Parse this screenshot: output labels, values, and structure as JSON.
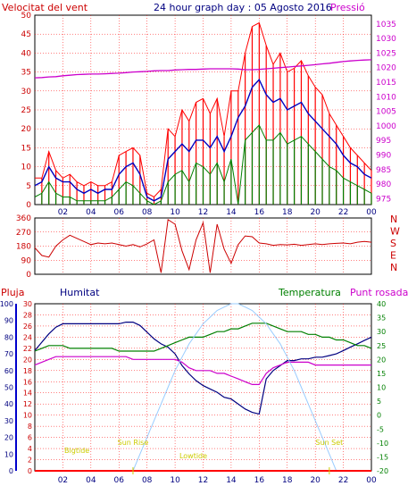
{
  "header": {
    "left_title": "Velocitat del vent",
    "center_title": "24 hour graph day : 05 Agosto 2016",
    "right_title": "Pressió"
  },
  "colors": {
    "background": "#ffffff",
    "grid": "#ff0000",
    "wind_speed": "#ff0000",
    "wind_avg": "#0000c0",
    "wind_low": "#008000",
    "pressure": "#cc00cc",
    "direction": "#cc0000",
    "humidity": "#000080",
    "temperature": "#008000",
    "dewpoint": "#cc00cc",
    "solar": "#99ccff",
    "rain": "#ff0000",
    "event_labels": "#cccc00",
    "axis_text": "#000080"
  },
  "chart_data": [
    {
      "type": "line",
      "title": "24 hour graph day : 05 Agosto 2016",
      "left_axis_label": "Velocitat del vent",
      "right_axis_label": "Pressió",
      "x_ticks": [
        "02",
        "04",
        "06",
        "08",
        "10",
        "12",
        "14",
        "16",
        "18",
        "20",
        "22",
        "00"
      ],
      "y_left_ticks": [
        "0",
        "5",
        "10",
        "15",
        "20",
        "25",
        "30",
        "35",
        "40",
        "45",
        "50"
      ],
      "y_left_range": [
        0,
        50
      ],
      "y_right_ticks": [
        "975",
        "980",
        "985",
        "990",
        "995",
        "1000",
        "1005",
        "1010",
        "1015",
        "1020",
        "1025",
        "1030",
        "1035"
      ],
      "y_right_range": [
        973,
        1038
      ],
      "grid": true,
      "x_hours": [
        0,
        0.5,
        1,
        1.5,
        2,
        2.5,
        3,
        3.5,
        4,
        4.5,
        5,
        5.5,
        6,
        6.5,
        7,
        7.5,
        8,
        8.5,
        9,
        9.5,
        10,
        10.5,
        11,
        11.5,
        12,
        12.5,
        13,
        13.5,
        14,
        14.5,
        15,
        15.5,
        16,
        16.5,
        17,
        17.5,
        18,
        18.5,
        19,
        19.5,
        20,
        20.5,
        21,
        21.5,
        22,
        22.5,
        23,
        23.5,
        24
      ],
      "series": [
        {
          "key": "gust",
          "values": [
            7,
            7,
            14,
            9,
            7,
            8,
            6,
            5,
            6,
            5,
            5,
            6,
            13,
            14,
            15,
            13,
            3,
            2,
            4,
            20,
            18,
            25,
            22,
            27,
            28,
            24,
            28,
            18,
            30,
            30,
            40,
            47,
            48,
            42,
            37,
            40,
            35,
            36,
            38,
            34,
            31,
            29,
            24,
            21,
            18,
            15,
            13,
            11,
            9
          ]
        },
        {
          "key": "average",
          "values": [
            5,
            6,
            10,
            7,
            6,
            6,
            4,
            3,
            4,
            3,
            4,
            4,
            8,
            10,
            11,
            8,
            2,
            1,
            2,
            12,
            14,
            16,
            14,
            17,
            17,
            15,
            18,
            14,
            18,
            23,
            26,
            31,
            33,
            29,
            27,
            28,
            25,
            26,
            27,
            24,
            22,
            20,
            18,
            16,
            13,
            11,
            10,
            8,
            7
          ]
        },
        {
          "key": "low",
          "values": [
            2,
            3,
            6,
            3,
            2,
            2,
            1,
            1,
            1,
            1,
            1,
            2,
            4,
            6,
            5,
            3,
            1,
            0,
            1,
            6,
            8,
            9,
            6,
            11,
            10,
            8,
            11,
            6,
            12,
            0,
            17,
            19,
            21,
            17,
            17,
            19,
            16,
            17,
            18,
            16,
            14,
            12,
            10,
            9,
            7,
            6,
            5,
            4,
            3
          ]
        },
        {
          "key": "pressure",
          "values": [
            1016.5,
            1016.6,
            1016.8,
            1016.9,
            1017.2,
            1017.4,
            1017.6,
            1017.7,
            1017.8,
            1017.8,
            1017.9,
            1018.0,
            1018.1,
            1018.3,
            1018.5,
            1018.6,
            1018.7,
            1018.9,
            1019.0,
            1019.0,
            1019.2,
            1019.3,
            1019.4,
            1019.4,
            1019.5,
            1019.6,
            1019.6,
            1019.6,
            1019.6,
            1019.5,
            1019.3,
            1019.3,
            1019.4,
            1019.6,
            1019.8,
            1020.0,
            1020.2,
            1020.4,
            1020.6,
            1020.8,
            1021.0,
            1021.3,
            1021.5,
            1021.8,
            1022.1,
            1022.3,
            1022.5,
            1022.6,
            1022.7
          ]
        }
      ]
    },
    {
      "type": "line",
      "right_axis_letters": [
        "N",
        "W",
        "S",
        "E",
        "N"
      ],
      "y_ticks": [
        "360",
        "270",
        "180",
        "90",
        "0"
      ],
      "y_range": [
        0,
        360
      ],
      "x_hours": [
        0,
        0.5,
        1,
        1.5,
        2,
        2.5,
        3,
        3.5,
        4,
        4.5,
        5,
        5.5,
        6,
        6.5,
        7,
        7.5,
        8,
        8.5,
        9,
        9.5,
        10,
        10.5,
        11,
        11.5,
        12,
        12.5,
        13,
        13.5,
        14,
        14.5,
        15,
        15.5,
        16,
        16.5,
        17,
        17.5,
        18,
        18.5,
        19,
        19.5,
        20,
        20.5,
        21,
        21.5,
        22,
        22.5,
        23,
        23.5,
        24
      ],
      "series": [
        {
          "key": "direction",
          "values": [
            170,
            120,
            110,
            180,
            220,
            250,
            230,
            210,
            190,
            200,
            195,
            200,
            190,
            180,
            190,
            175,
            195,
            220,
            10,
            350,
            320,
            150,
            30,
            220,
            330,
            10,
            320,
            160,
            70,
            190,
            245,
            240,
            200,
            195,
            185,
            190,
            188,
            192,
            185,
            190,
            195,
            190,
            195,
            198,
            200,
            195,
            205,
            210,
            205
          ]
        }
      ]
    },
    {
      "type": "line",
      "labels": {
        "rain": "Pluja",
        "humidity": "Humitat",
        "temperature": "Temperatura",
        "dewpoint": "Punt rosada"
      },
      "y_rain_ticks": [
        "0",
        "2",
        "4",
        "6",
        "8",
        "10",
        "12",
        "14",
        "16",
        "18",
        "20",
        "22",
        "24",
        "26",
        "28",
        "30"
      ],
      "y_rain_range": [
        0,
        30
      ],
      "y_humidity_ticks": [
        "0",
        "10",
        "20",
        "30",
        "40",
        "50",
        "60",
        "70",
        "80",
        "90",
        "100"
      ],
      "y_humidity_range": [
        0,
        100
      ],
      "y_temp_ticks": [
        "-20",
        "-15",
        "-10",
        "-5",
        "0",
        "5",
        "10",
        "15",
        "20",
        "25",
        "30",
        "35",
        "40"
      ],
      "y_temp_range": [
        -20,
        40
      ],
      "event_labels": [
        "Sun Rise",
        "Sun Set",
        "Lowtide",
        "Bigtide"
      ],
      "x_hours": [
        0,
        0.5,
        1,
        1.5,
        2,
        2.5,
        3,
        3.5,
        4,
        4.5,
        5,
        5.5,
        6,
        6.5,
        7,
        7.5,
        8,
        8.5,
        9,
        9.5,
        10,
        10.5,
        11,
        11.5,
        12,
        12.5,
        13,
        13.5,
        14,
        14.5,
        15,
        15.5,
        16,
        16.5,
        17,
        17.5,
        18,
        18.5,
        19,
        19.5,
        20,
        20.5,
        21,
        21.5,
        22,
        22.5,
        23,
        23.5,
        24
      ],
      "series": [
        {
          "key": "humidity",
          "values": [
            72,
            77,
            82,
            86,
            88,
            88,
            88,
            88,
            88,
            88,
            88,
            88,
            88,
            89,
            89,
            87,
            83,
            79,
            76,
            74,
            70,
            63,
            58,
            54,
            51,
            49,
            47,
            44,
            43,
            40,
            37,
            35,
            34,
            55,
            60,
            63,
            66,
            66,
            67,
            67,
            68,
            68,
            69,
            70,
            72,
            74,
            76,
            78,
            80
          ]
        },
        {
          "key": "temperature",
          "values": [
            23,
            24,
            25,
            25,
            25,
            24,
            24,
            24,
            24,
            24,
            24,
            24,
            23,
            23,
            23,
            23,
            23,
            23,
            24,
            25,
            26,
            27,
            28,
            28,
            28,
            29,
            30,
            30,
            31,
            31,
            32,
            33,
            33,
            33,
            32,
            31,
            30,
            30,
            30,
            29,
            29,
            28,
            28,
            27,
            27,
            26,
            25,
            25,
            24
          ]
        },
        {
          "key": "dewpoint",
          "values": [
            18,
            19,
            20,
            21,
            21,
            21,
            21,
            21,
            21,
            21,
            21,
            21,
            21,
            21,
            20,
            20,
            20,
            20,
            20,
            20,
            20,
            19,
            17,
            16,
            16,
            16,
            15,
            15,
            14,
            13,
            12,
            11,
            11,
            15,
            17,
            18,
            19,
            19,
            19,
            19,
            18,
            18,
            18,
            18,
            18,
            18,
            18,
            18,
            18
          ]
        },
        {
          "key": "solar",
          "values": [
            0,
            0,
            0,
            0,
            0,
            0,
            0,
            0,
            0,
            0,
            0,
            0,
            0,
            0,
            0,
            10,
            20,
            30,
            40,
            50,
            60,
            68,
            76,
            82,
            88,
            92,
            96,
            98,
            100,
            100,
            98,
            96,
            92,
            88,
            82,
            76,
            68,
            60,
            50,
            40,
            30,
            20,
            10,
            0,
            0,
            0,
            0,
            0,
            0
          ]
        },
        {
          "key": "rain",
          "values": [
            0,
            0,
            0,
            0,
            0,
            0,
            0,
            0,
            0,
            0,
            0,
            0,
            0,
            0,
            0,
            0,
            0,
            0,
            0,
            0,
            0,
            0,
            0,
            0,
            0,
            0,
            0,
            0,
            0,
            0,
            0,
            0,
            0,
            0,
            0,
            0,
            0,
            0,
            0,
            0,
            0,
            0,
            0,
            0,
            0,
            0,
            0,
            0,
            0
          ]
        }
      ]
    }
  ]
}
